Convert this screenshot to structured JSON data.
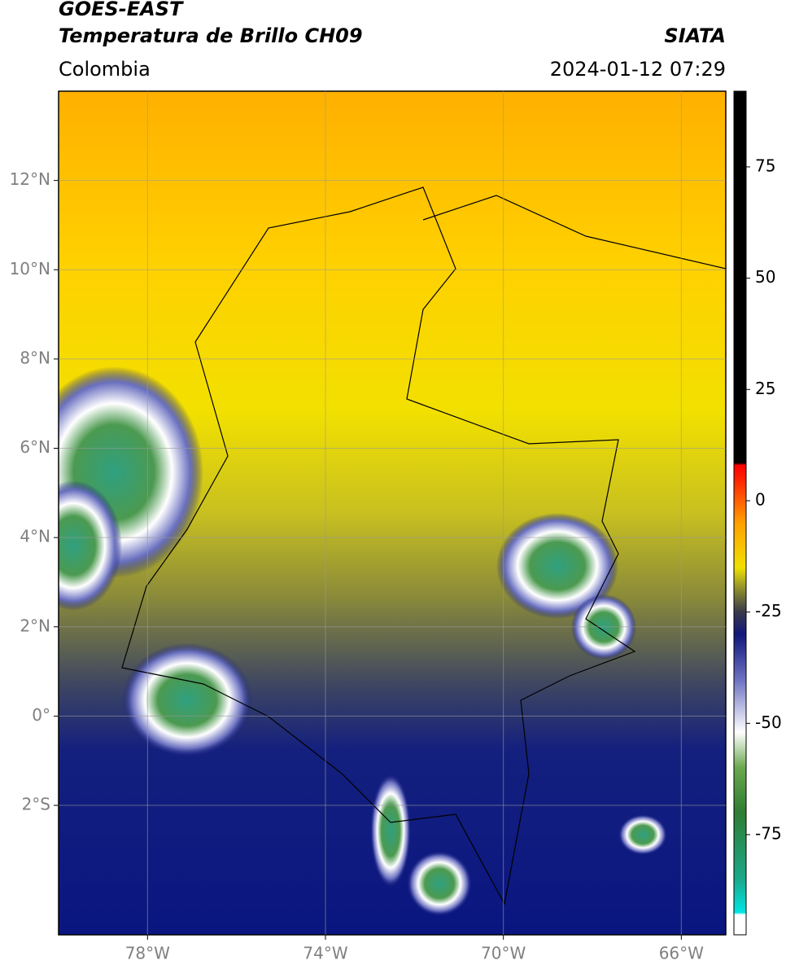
{
  "header": {
    "title": "GOES-EAST",
    "subtitle": "Temperatura de Brillo CH09",
    "agency": "SIATA",
    "region": "Colombia",
    "datetime": "2024-01-12 07:29"
  },
  "map": {
    "xlim": [
      -80,
      -65
    ],
    "ylim": [
      -4.9,
      14
    ],
    "xticks": [
      {
        "value": -78,
        "label": "78°W"
      },
      {
        "value": -74,
        "label": "74°W"
      },
      {
        "value": -70,
        "label": "70°W"
      },
      {
        "value": -66,
        "label": "66°W"
      }
    ],
    "yticks": [
      {
        "value": 12,
        "label": "12°N"
      },
      {
        "value": 10,
        "label": "10°N"
      },
      {
        "value": 8,
        "label": "8°N"
      },
      {
        "value": 6,
        "label": "6°N"
      },
      {
        "value": 4,
        "label": "4°N"
      },
      {
        "value": 2,
        "label": "2°N"
      },
      {
        "value": 0,
        "label": "0°"
      },
      {
        "value": -2,
        "label": "2°S"
      }
    ],
    "grid": true
  },
  "colorbar": {
    "clim": [
      -97.5,
      92
    ],
    "ticks": [
      75,
      50,
      25,
      0,
      -25,
      -50,
      -75
    ],
    "colormap": [
      {
        "value": -97.5,
        "color": "#ffffff"
      },
      {
        "value": -93,
        "color": "#ffffff"
      },
      {
        "value": -92.5,
        "color": "#00e5e5"
      },
      {
        "value": -85,
        "color": "#1aa88a"
      },
      {
        "value": -70,
        "color": "#2e7d32"
      },
      {
        "value": -60,
        "color": "#6aa84f"
      },
      {
        "value": -52,
        "color": "#ffffff"
      },
      {
        "value": -40,
        "color": "#6a70c0"
      },
      {
        "value": -30,
        "color": "#10187a"
      },
      {
        "value": -25,
        "color": "#3a3a4a"
      },
      {
        "value": -20,
        "color": "#8a8a30"
      },
      {
        "value": -15,
        "color": "#f0e000"
      },
      {
        "value": -5,
        "color": "#ffa000"
      },
      {
        "value": 5,
        "color": "#ff2000"
      },
      {
        "value": 8,
        "color": "#ff0000"
      },
      {
        "value": 8.5,
        "color": "#000000"
      },
      {
        "value": 92,
        "color": "#000000"
      }
    ]
  }
}
